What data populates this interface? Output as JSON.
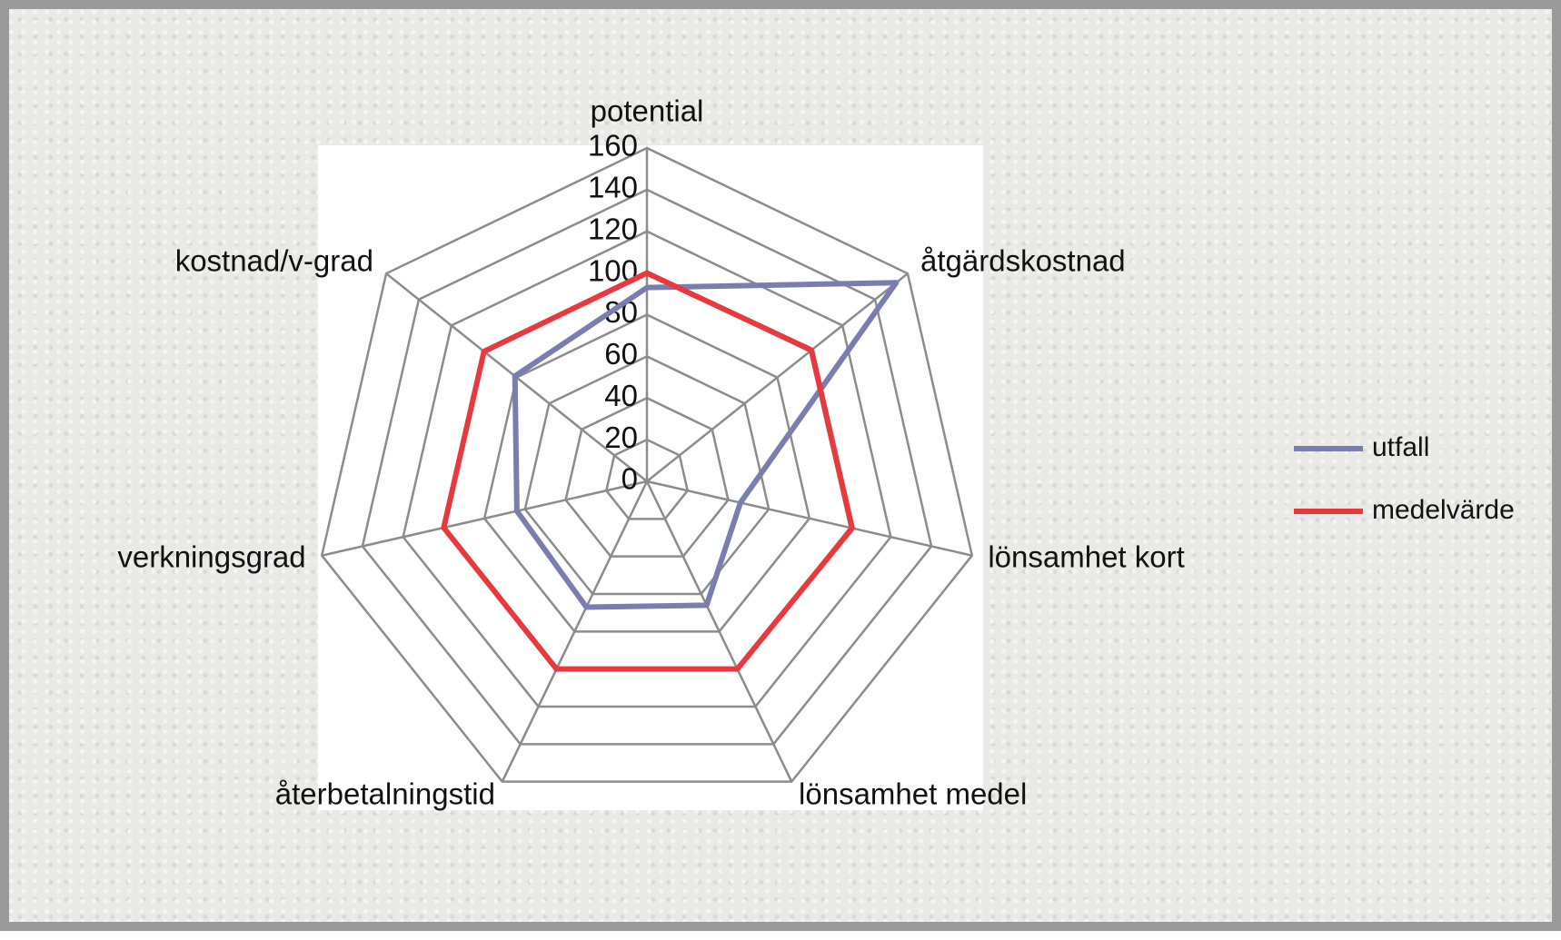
{
  "chart_data": {
    "type": "radar",
    "categories": [
      "potential",
      "åtgärdskostnad",
      "lönsamhet kort",
      "lönsamhet medel",
      "återbetalningstid",
      "verkningsgrad",
      "kostnad/v-grad"
    ],
    "series": [
      {
        "name": "utfall",
        "color": "#7a7eae",
        "values": [
          93,
          153,
          46,
          66,
          67,
          64,
          81
        ]
      },
      {
        "name": "medelvärde",
        "color": "#e8393f",
        "values": [
          100,
          101,
          101,
          100,
          100,
          100,
          100
        ]
      }
    ],
    "ylim": [
      0,
      160
    ],
    "yticks": [
      0,
      20,
      40,
      60,
      80,
      100,
      120,
      140,
      160
    ],
    "grid": true,
    "legend": "right"
  }
}
